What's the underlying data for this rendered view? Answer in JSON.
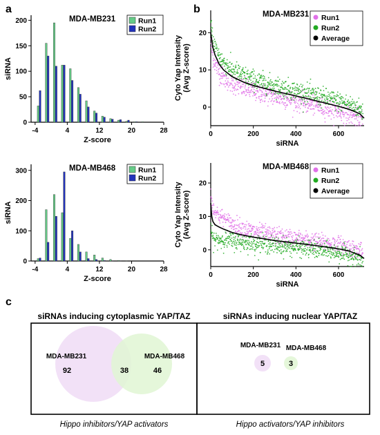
{
  "panels": {
    "a": "a",
    "b": "b",
    "c": "c"
  },
  "chart_data": [
    {
      "type": "bar",
      "title": "MDA-MB231",
      "xlabel": "Z-score",
      "ylabel": "siRNA",
      "xlim": [
        -5,
        28
      ],
      "ylim": [
        0,
        210
      ],
      "xticks": [
        -4,
        4,
        12,
        20,
        28
      ],
      "xtick_labels": [
        "-4",
        "4",
        "12",
        "20",
        "28"
      ],
      "yticks": [
        0,
        50,
        100,
        150,
        200
      ],
      "ytick_labels": [
        "0",
        "50",
        "100",
        "150",
        "200"
      ],
      "bin_centers": [
        -3,
        -1,
        1,
        3,
        5,
        7,
        9,
        11,
        13,
        15,
        17,
        19,
        21,
        23,
        25
      ],
      "series": [
        {
          "name": "Run1",
          "color": "#66cc88",
          "values": [
            32,
            155,
            195,
            112,
            105,
            68,
            42,
            22,
            12,
            7,
            4,
            2,
            1,
            1,
            0
          ]
        },
        {
          "name": "Run2",
          "color": "#2233bb",
          "values": [
            62,
            130,
            110,
            112,
            82,
            55,
            30,
            18,
            10,
            6,
            5,
            4,
            1,
            0,
            0
          ]
        }
      ],
      "legend_position": "top-right"
    },
    {
      "type": "scatter",
      "title": "MDA-MB231",
      "xlabel": "siRNA",
      "ylabel": "Cyto Yap Intensity\n(Avg Z-score)",
      "xlim": [
        0,
        720
      ],
      "ylim": [
        -5,
        26
      ],
      "xticks": [
        0,
        200,
        400,
        600
      ],
      "xtick_labels": [
        "0",
        "200",
        "400",
        "600"
      ],
      "yticks": [
        0,
        10,
        20
      ],
      "ytick_labels": [
        "0",
        "10",
        "20"
      ],
      "series": [
        {
          "name": "Run1",
          "color": "#e070e8",
          "marker": "point"
        },
        {
          "name": "Run2",
          "color": "#22aa22",
          "marker": "point"
        },
        {
          "name": "Average",
          "color": "#000000",
          "marker": "line",
          "x": [
            0,
            10,
            20,
            40,
            60,
            100,
            150,
            200,
            300,
            400,
            500,
            600,
            650,
            700,
            720
          ],
          "y": [
            20,
            16,
            14,
            11.5,
            10,
            8.2,
            6.8,
            5.8,
            4.3,
            3,
            1.6,
            0.2,
            -0.6,
            -1.8,
            -3
          ]
        }
      ],
      "legend_position": "top-right"
    },
    {
      "type": "bar",
      "title": "MDA-MB468",
      "xlabel": "Z-score",
      "ylabel": "siRNA",
      "xlim": [
        -5,
        28
      ],
      "ylim": [
        0,
        320
      ],
      "xticks": [
        -4,
        4,
        12,
        20,
        28
      ],
      "xtick_labels": [
        "-4",
        "4",
        "12",
        "20",
        "28"
      ],
      "yticks": [
        0,
        100,
        200,
        300
      ],
      "ytick_labels": [
        "0",
        "100",
        "200",
        "300"
      ],
      "bin_centers": [
        -3,
        -1,
        1,
        3,
        5,
        7,
        9,
        11,
        13,
        15,
        17,
        19
      ],
      "series": [
        {
          "name": "Run1",
          "color": "#66cc88",
          "values": [
            8,
            170,
            220,
            160,
            75,
            55,
            30,
            20,
            10,
            5,
            2,
            1
          ]
        },
        {
          "name": "Run2",
          "color": "#2233bb",
          "values": [
            10,
            62,
            148,
            295,
            100,
            30,
            8,
            5,
            2,
            1,
            1,
            0
          ]
        }
      ],
      "legend_position": "top-right"
    },
    {
      "type": "scatter",
      "title": "MDA-MB468",
      "xlabel": "siRNA",
      "ylabel": "Cyto Yap Intensity\n(Avg Z-score)",
      "xlim": [
        0,
        720
      ],
      "ylim": [
        -5,
        26
      ],
      "xticks": [
        0,
        200,
        400,
        600
      ],
      "xtick_labels": [
        "0",
        "200",
        "400",
        "600"
      ],
      "yticks": [
        0,
        10,
        20
      ],
      "ytick_labels": [
        "0",
        "10",
        "20"
      ],
      "series": [
        {
          "name": "Run1",
          "color": "#e070e8",
          "marker": "point"
        },
        {
          "name": "Run2",
          "color": "#22aa22",
          "marker": "point"
        },
        {
          "name": "Average",
          "color": "#000000",
          "marker": "line",
          "x": [
            0,
            5,
            10,
            20,
            40,
            60,
            100,
            150,
            200,
            300,
            400,
            500,
            600,
            650,
            700,
            720
          ],
          "y": [
            14,
            10,
            8.5,
            7.5,
            6.8,
            6.2,
            5.2,
            4.4,
            3.8,
            2.8,
            2,
            1.2,
            0.3,
            -0.4,
            -1.6,
            -2.6
          ]
        }
      ],
      "legend_position": "top-right"
    }
  ],
  "venn": {
    "left_title": "siRNAs inducing cytoplasmic YAP/TAZ",
    "right_title": "siRNAs inducing nuclear YAP/TAZ",
    "left_set_a": "MDA-MB231",
    "left_set_b": "MDA-MB468",
    "left_only_a": "92",
    "left_overlap": "38",
    "left_only_b": "46",
    "right_set_a": "MDA-MB231",
    "right_set_b": "MDA-MB468",
    "right_count_a": "5",
    "right_count_b": "3",
    "left_footer": "Hippo inhibitors/YAP activators",
    "right_footer": "Hippo activators/YAP inhibitors",
    "colors": {
      "a": "#f0dcf6",
      "b": "#e0f6d4"
    }
  }
}
